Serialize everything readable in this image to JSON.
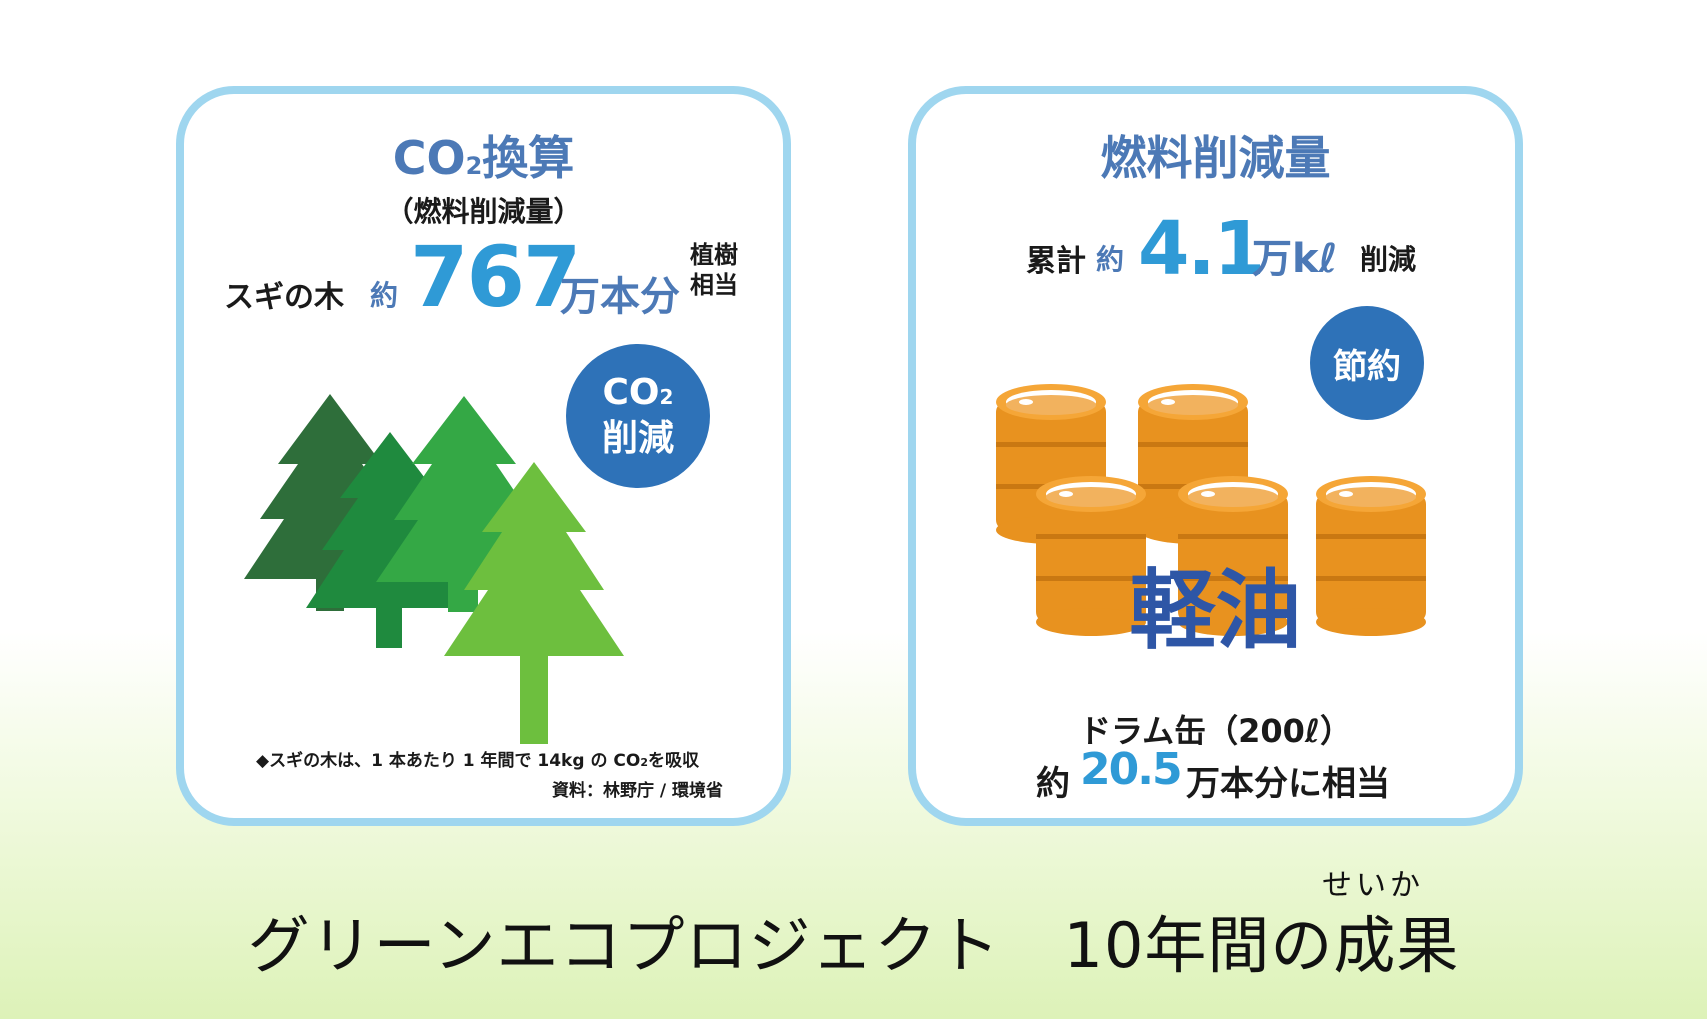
{
  "left_card": {
    "title_co": "CO",
    "title_sub": "2",
    "title_rest": "換算",
    "subtitle": "（燃料削減量）",
    "prefix": "スギの木",
    "approx": "約",
    "value": "767",
    "unit": "万本分",
    "suffix_line1": "植樹",
    "suffix_line2": "相当",
    "badge_co": "CO",
    "badge_sub": "2",
    "badge_line2": "削減",
    "note_pre": "◆スギの木は、1 本あたり 1 年間で 14kg の CO",
    "note_sub": "2",
    "note_post": "を吸収",
    "source": "資料：林野庁 / 環境省",
    "tree_icon": "cedar-tree-icon",
    "tree_colors": [
      "#2e6e3a",
      "#1f8a3e",
      "#34a845",
      "#6dbf3e"
    ]
  },
  "right_card": {
    "title": "燃料削減量",
    "prefix": "累計",
    "approx": "約",
    "value": "4.1",
    "unit": "万kℓ",
    "suffix": "削減",
    "badge": "節約",
    "barrel_icon": "oil-drum-icon",
    "barrel_label": "軽油",
    "barrel_color": "#e8921f",
    "drum_line": "ドラム缶（200ℓ）",
    "approx2": "約",
    "drum_value": "20.5",
    "drum_suffix": "万本分に相当"
  },
  "footer": {
    "title": "グリーンエコプロジェクト　10年間の成果",
    "furigana": "せいか"
  },
  "colors": {
    "card_border": "#9fd6ef",
    "badge_bg": "#2e72b8",
    "title_blue": "#4c79b6",
    "value_blue": "#2f9ad6"
  }
}
